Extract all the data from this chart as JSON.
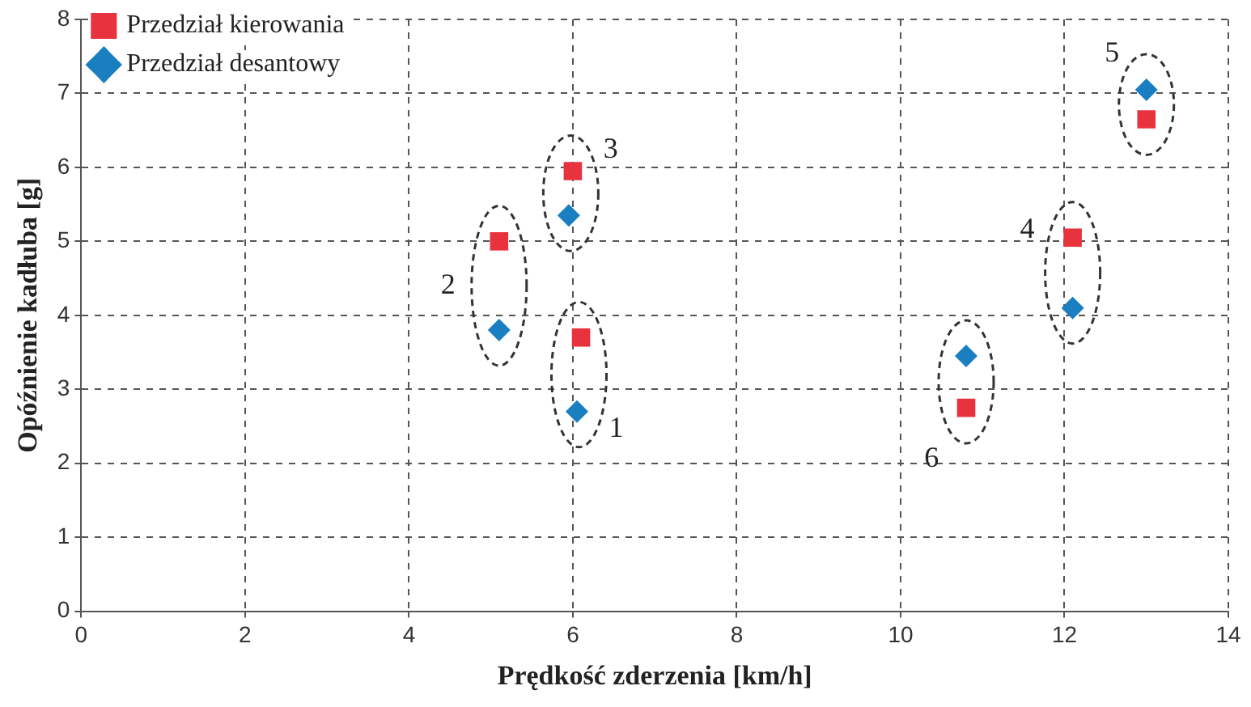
{
  "chart_data": {
    "type": "scatter",
    "xlabel": "Prędkość zderzenia [km/h]",
    "ylabel": "Opóźnienie kadłuba [g]",
    "xlim": [
      0,
      14
    ],
    "xticks": [
      0,
      2,
      4,
      6,
      8,
      10,
      12,
      14
    ],
    "ylim": [
      0,
      8
    ],
    "yticks": [
      0,
      1,
      2,
      3,
      4,
      5,
      6,
      7,
      8
    ],
    "grid": true,
    "legend": "top left",
    "series": [
      {
        "name": "Przedział kierowania",
        "color": "#e8333f",
        "marker": "square",
        "x": [
          6.1,
          5.1,
          6.0,
          12.1,
          13.0,
          10.8
        ],
        "values": [
          3.7,
          5.0,
          5.95,
          5.05,
          6.65,
          2.75
        ]
      },
      {
        "name": "Przedział desantowy",
        "color": "#1a7fc1",
        "marker": "diamond",
        "x": [
          6.05,
          5.1,
          5.95,
          12.1,
          13.0,
          10.8
        ],
        "values": [
          2.7,
          3.8,
          5.35,
          4.1,
          7.05,
          3.45
        ]
      }
    ],
    "annotations": [
      "1",
      "2",
      "3",
      "4",
      "5",
      "6"
    ]
  }
}
